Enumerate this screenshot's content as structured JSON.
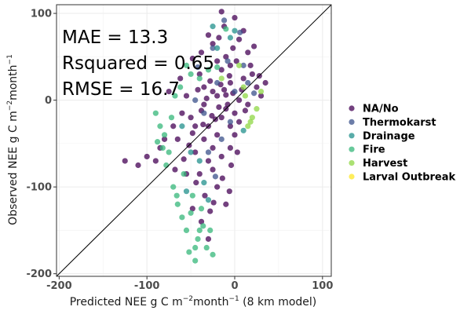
{
  "chart_data": {
    "type": "scatter",
    "xlabel": {
      "prefix": "Predicted NEE g C m",
      "sup1": "−2",
      "mid": "month",
      "sup2": "−1",
      "suffix": " (8 km model)"
    },
    "ylabel": {
      "prefix": "Observed NEE g C m",
      "sup1": "−2",
      "mid": "month",
      "sup2": "−1"
    },
    "xlim": [
      -203,
      110
    ],
    "ylim": [
      -203,
      110
    ],
    "xticks": [
      -200,
      -100,
      0,
      100
    ],
    "yticks": [
      -200,
      -100,
      0,
      100
    ],
    "xtick_labels": [
      "-200",
      "-100",
      "0",
      "100"
    ],
    "ytick_labels": [
      "-200",
      "-100",
      "0",
      "100"
    ],
    "grid": true,
    "reference_line": "1:1",
    "annotations": [
      "MAE = 13.3",
      "Rsquared = 0.65",
      "RMSE = 16.7"
    ],
    "legend_position": "right",
    "series": [
      {
        "name": "NA/No",
        "color": "#440154",
        "points": [
          [
            -10,
            6
          ],
          [
            -25,
            10
          ],
          [
            -35,
            -5
          ],
          [
            -5,
            20
          ],
          [
            -15,
            -20
          ],
          [
            -40,
            30
          ],
          [
            -30,
            -30
          ],
          [
            -20,
            -40
          ],
          [
            -45,
            -60
          ],
          [
            -10,
            -10
          ],
          [
            5,
            0
          ],
          [
            0,
            -15
          ],
          [
            -20,
            5
          ],
          [
            -35,
            15
          ],
          [
            -50,
            -20
          ],
          [
            -25,
            -55
          ],
          [
            -15,
            35
          ],
          [
            -5,
            -30
          ],
          [
            -30,
            -70
          ],
          [
            -40,
            -85
          ],
          [
            -20,
            -100
          ],
          [
            -60,
            -15
          ],
          [
            -65,
            -45
          ],
          [
            -10,
            50
          ],
          [
            -2,
            60
          ],
          [
            5,
            70
          ],
          [
            10,
            80
          ],
          [
            0,
            95
          ],
          [
            15,
            55
          ],
          [
            20,
            30
          ],
          [
            25,
            15
          ],
          [
            30,
            5
          ],
          [
            15,
            -5
          ],
          [
            10,
            25
          ],
          [
            -5,
            40
          ],
          [
            -25,
            65
          ],
          [
            -30,
            75
          ],
          [
            -20,
            45
          ],
          [
            -55,
            5
          ],
          [
            -45,
            -30
          ],
          [
            -35,
            -45
          ],
          [
            -25,
            -80
          ],
          [
            -15,
            -65
          ],
          [
            -5,
            -55
          ],
          [
            0,
            -40
          ],
          [
            5,
            -25
          ],
          [
            -8,
            -5
          ],
          [
            -12,
            12
          ],
          [
            -28,
            22
          ],
          [
            -38,
            -12
          ],
          [
            -48,
            -38
          ],
          [
            -22,
            -22
          ],
          [
            -18,
            -8
          ],
          [
            -32,
            2
          ],
          [
            -42,
            12
          ],
          [
            -2,
            8
          ],
          [
            8,
            12
          ],
          [
            12,
            -12
          ],
          [
            -6,
            28
          ],
          [
            -16,
            18
          ],
          [
            -26,
            -18
          ],
          [
            -36,
            -28
          ],
          [
            -52,
            -52
          ],
          [
            -58,
            -68
          ],
          [
            -44,
            -95
          ],
          [
            -34,
            -110
          ],
          [
            -24,
            -118
          ],
          [
            -14,
            -90
          ],
          [
            -4,
            -75
          ],
          [
            -70,
            -30
          ],
          [
            -80,
            -45
          ],
          [
            -75,
            10
          ],
          [
            -90,
            -70
          ],
          [
            2,
            45
          ],
          [
            18,
            40
          ],
          [
            28,
            28
          ],
          [
            35,
            20
          ],
          [
            22,
            62
          ],
          [
            -12,
            85
          ],
          [
            -18,
            72
          ],
          [
            -48,
            48
          ],
          [
            -38,
            55
          ],
          [
            -62,
            25
          ],
          [
            -55,
            -85
          ],
          [
            -48,
            -125
          ],
          [
            -38,
            -140
          ],
          [
            -28,
            -128
          ],
          [
            -10,
            -120
          ],
          [
            -6,
            -105
          ],
          [
            3,
            -60
          ],
          [
            -100,
            -65
          ],
          [
            -85,
            -55
          ],
          [
            -110,
            -75
          ],
          [
            -125,
            -70
          ],
          [
            -68,
            -80
          ],
          [
            -30,
            -160
          ],
          [
            -15,
            102
          ]
        ]
      },
      {
        "name": "Thermokarst",
        "color": "#3b528b",
        "points": [
          [
            -8,
            45
          ],
          [
            -20,
            20
          ],
          [
            -35,
            -15
          ],
          [
            -15,
            -45
          ],
          [
            0,
            10
          ],
          [
            10,
            40
          ],
          [
            -25,
            60
          ],
          [
            -45,
            0
          ],
          [
            -5,
            -25
          ],
          [
            15,
            20
          ],
          [
            -30,
            -60
          ],
          [
            -12,
            92
          ],
          [
            6,
            78
          ],
          [
            -42,
            38
          ],
          [
            -22,
            -88
          ],
          [
            22,
            8
          ]
        ]
      },
      {
        "name": "Drainage",
        "color": "#21908c",
        "points": [
          [
            -40,
            -70
          ],
          [
            -55,
            -105
          ],
          [
            -30,
            -115
          ],
          [
            -20,
            60
          ],
          [
            0,
            80
          ],
          [
            -60,
            -30
          ],
          [
            -35,
            -95
          ],
          [
            -50,
            -60
          ],
          [
            10,
            -35
          ],
          [
            -25,
            85
          ],
          [
            -5,
            72
          ]
        ]
      },
      {
        "name": "Fire",
        "color": "#35b779",
        "points": [
          [
            -50,
            -130
          ],
          [
            -40,
            -150
          ],
          [
            -32,
            -170
          ],
          [
            -45,
            -170
          ],
          [
            -60,
            -135
          ],
          [
            -55,
            -150
          ],
          [
            -65,
            -120
          ],
          [
            -70,
            -100
          ],
          [
            -58,
            -85
          ],
          [
            -75,
            -60
          ],
          [
            -80,
            -40
          ],
          [
            -72,
            -20
          ],
          [
            -85,
            -30
          ],
          [
            -90,
            -15
          ],
          [
            -48,
            -110
          ],
          [
            -38,
            -125
          ],
          [
            -28,
            -150
          ],
          [
            -25,
            -178
          ],
          [
            -45,
            -185
          ],
          [
            -55,
            40
          ],
          [
            -50,
            30
          ],
          [
            -62,
            15
          ],
          [
            -68,
            5
          ],
          [
            -40,
            25
          ],
          [
            -30,
            35
          ],
          [
            -20,
            38
          ],
          [
            -10,
            82
          ],
          [
            -36,
            -145
          ],
          [
            -42,
            -160
          ],
          [
            -52,
            -175
          ],
          [
            -66,
            -110
          ],
          [
            -78,
            -75
          ],
          [
            -82,
            -55
          ],
          [
            -88,
            -48
          ]
        ]
      },
      {
        "name": "Harvest",
        "color": "#8fd744",
        "points": [
          [
            15,
            -30
          ],
          [
            20,
            -20
          ],
          [
            10,
            15
          ],
          [
            -15,
            25
          ],
          [
            5,
            40
          ],
          [
            25,
            -10
          ],
          [
            30,
            10
          ],
          [
            18,
            -25
          ],
          [
            12,
            5
          ]
        ]
      },
      {
        "name": "Larval Outbreak",
        "color": "#fde725",
        "points": []
      }
    ]
  }
}
